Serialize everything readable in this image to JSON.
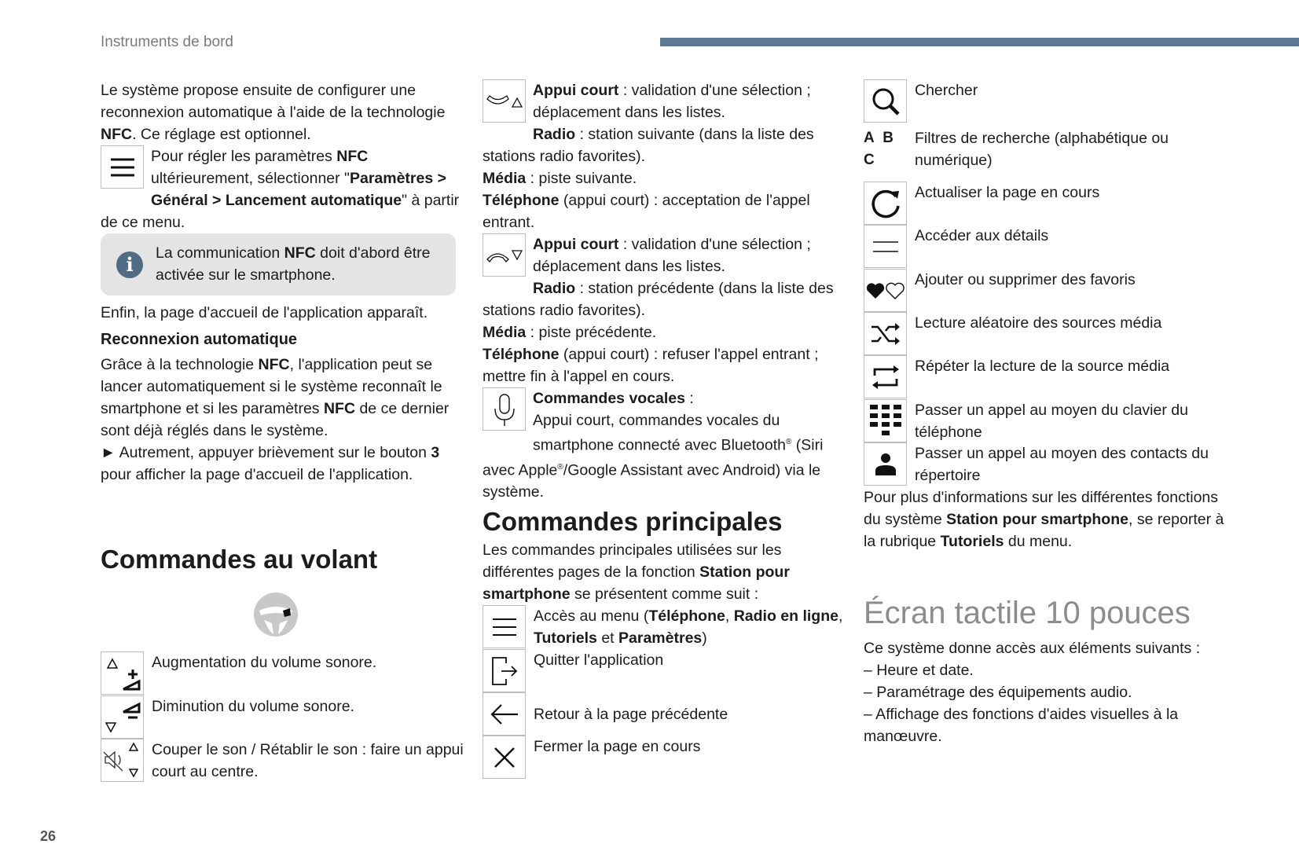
{
  "header": {
    "section": "Instruments de bord",
    "page_number": "26",
    "bar_color": "#5b7a91"
  },
  "left": {
    "intro": [
      {
        "t": "Le système propose ensuite de configurer une reconnexion automatique à l'aide de la technologie "
      },
      {
        "t": "NFC",
        "b": 1
      },
      {
        "t": ". Ce réglage est optionnel."
      }
    ],
    "menu_note": [
      {
        "t": "Pour régler les paramètres "
      },
      {
        "t": "NFC",
        "b": 1
      },
      {
        "t": " ultérieurement, sélectionner \""
      },
      {
        "t": "Paramètres > Général > Lancement automatique",
        "b": 1
      },
      {
        "t": "\" à partir de ce menu."
      }
    ],
    "info": [
      {
        "t": "La communication "
      },
      {
        "t": "NFC",
        "b": 1
      },
      {
        "t": " doit d'abord être activée sur le smartphone."
      }
    ],
    "info_icon": "i",
    "finally": [
      {
        "t": "Enfin, la page d'accueil de l'application apparaît."
      }
    ],
    "subheading": "Reconnexion automatique",
    "reconnect": [
      {
        "t": "Grâce à la technologie "
      },
      {
        "t": "NFC",
        "b": 1
      },
      {
        "t": ", l'application peut se lancer automatiquement si le système reconnaît le smartphone et si les paramètres "
      },
      {
        "t": "NFC",
        "b": 1
      },
      {
        "t": " de ce dernier sont déjà réglés dans le système."
      }
    ],
    "otherwise": [
      {
        "t": "► Autrement, appuyer brièvement sur le bouton "
      },
      {
        "t": "3",
        "b": 1
      },
      {
        "t": " pour afficher la page d'accueil de l'application."
      }
    ],
    "heading": "Commandes au volant",
    "wheel_items": [
      {
        "icon": "volume-up-icon",
        "text": "Augmentation du volume sonore."
      },
      {
        "icon": "volume-down-icon",
        "text": "Diminution du volume sonore."
      },
      {
        "icon": "mute-icon",
        "text": "Couper le son / Rétablir le son : faire un appui court au centre."
      }
    ]
  },
  "middle": {
    "up": [
      {
        "t": "Appui court",
        "b": 1
      },
      {
        "t": " : validation d'une sélection ; déplacement dans les listes."
      }
    ],
    "up_details": [
      {
        "t": "Radio",
        "b": 1
      },
      {
        "t": " : station suivante (dans la liste des stations radio favorites)."
      }
    ],
    "up_media": [
      {
        "t": "Média",
        "b": 1
      },
      {
        "t": " : piste suivante."
      }
    ],
    "up_phone": [
      {
        "t": "Téléphone",
        "b": 1
      },
      {
        "t": " (appui court) : acceptation de l'appel entrant."
      }
    ],
    "down": [
      {
        "t": "Appui court",
        "b": 1
      },
      {
        "t": " : validation d'une sélection ; déplacement dans les listes."
      }
    ],
    "down_details": [
      {
        "t": "Radio",
        "b": 1
      },
      {
        "t": " : station précédente (dans la liste des stations radio favorites)."
      }
    ],
    "down_media": [
      {
        "t": "Média",
        "b": 1
      },
      {
        "t": " : piste précédente."
      }
    ],
    "down_phone": [
      {
        "t": "Téléphone",
        "b": 1
      },
      {
        "t": " (appui court) : refuser l'appel entrant ; mettre fin à l'appel en cours."
      }
    ],
    "voice": [
      {
        "t": "Commandes vocales",
        "b": 1
      },
      {
        "t": " :"
      }
    ],
    "voice_text": [
      {
        "t": "Appui court, commandes vocales du smartphone connecté avec Bluetooth"
      },
      {
        "t": "®",
        "sup": 1
      },
      {
        "t": " (Siri avec Apple"
      },
      {
        "t": "®",
        "sup": 1
      },
      {
        "t": "/Google Assistant avec Android) via le système."
      }
    ],
    "heading": "Commandes principales",
    "intro": [
      {
        "t": "Les commandes principales utilisées sur les différentes pages de la fonction "
      },
      {
        "t": "Station pour smartphone",
        "b": 1
      },
      {
        "t": " se présentent comme suit :"
      }
    ],
    "menu_item": [
      {
        "t": "Accès au menu ("
      },
      {
        "t": "Téléphone",
        "b": 1
      },
      {
        "t": ", "
      },
      {
        "t": "Radio en ligne",
        "b": 1
      },
      {
        "t": ", "
      },
      {
        "t": "Tutoriels",
        "b": 1
      },
      {
        "t": " et "
      },
      {
        "t": "Paramètres",
        "b": 1
      },
      {
        "t": ")"
      }
    ],
    "exit_item": "Quitter l'application",
    "back_item": "Retour à la page précédente",
    "close_item": "Fermer la page en cours"
  },
  "right": {
    "search": "Chercher",
    "abc_label": "A B C",
    "abc": "Filtres de recherche (alphabétique ou numérique)",
    "refresh": "Actualiser la page en cours",
    "details": "Accéder aux détails",
    "favorites": "Ajouter ou supprimer des favoris",
    "shuffle": "Lecture aléatoire des sources média",
    "repeat": "Répéter la lecture de la source média",
    "keypad": "Passer un appel au moyen du clavier du téléphone",
    "contacts": "Passer un appel au moyen des contacts du répertoire",
    "more_info": [
      {
        "t": "Pour plus d'informations sur les différentes fonctions du système "
      },
      {
        "t": "Station pour smartphone",
        "b": 1
      },
      {
        "t": ", se reporter à la rubrique "
      },
      {
        "t": "Tutoriels",
        "b": 1
      },
      {
        "t": " du menu."
      }
    ],
    "heading": "Écran tactile 10 pouces",
    "intro": "Ce système donne accès aux éléments suivants :",
    "list": [
      "–  Heure et date.",
      "–  Paramétrage des équipements audio.",
      "–  Affichage des fonctions d'aides visuelles à la manœuvre."
    ]
  }
}
